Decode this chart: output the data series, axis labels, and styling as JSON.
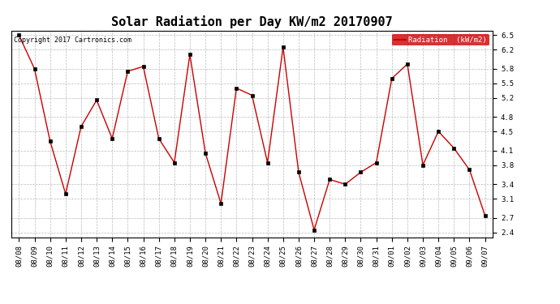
{
  "title": "Solar Radiation per Day KW/m2 20170907",
  "copyright_text": "Copyright 2017 Cartronics.com",
  "legend_label": "Radiation  (kW/m2)",
  "dates": [
    "08/08",
    "08/09",
    "08/10",
    "08/11",
    "08/12",
    "08/13",
    "08/14",
    "08/15",
    "08/16",
    "08/17",
    "08/18",
    "08/19",
    "08/20",
    "08/21",
    "08/22",
    "08/23",
    "08/24",
    "08/25",
    "08/26",
    "08/27",
    "08/28",
    "08/29",
    "08/30",
    "08/31",
    "09/01",
    "09/02",
    "09/03",
    "09/04",
    "09/05",
    "09/06",
    "09/07"
  ],
  "values": [
    6.5,
    5.8,
    4.3,
    3.2,
    4.6,
    5.15,
    4.35,
    5.75,
    5.85,
    4.35,
    3.85,
    6.1,
    4.05,
    3.0,
    5.4,
    5.25,
    3.85,
    6.25,
    3.65,
    2.45,
    3.5,
    3.4,
    3.65,
    3.85,
    5.6,
    5.9,
    3.8,
    4.5,
    4.15,
    3.7,
    2.75
  ],
  "line_color": "#cc0000",
  "marker_color": "#000000",
  "bg_color": "#ffffff",
  "grid_color": "#aaaaaa",
  "legend_bg": "#cc0000",
  "legend_text_color": "#ffffff",
  "ylim": [
    2.3,
    6.6
  ],
  "yticks": [
    2.4,
    2.7,
    3.1,
    3.4,
    3.8,
    4.1,
    4.5,
    4.8,
    5.2,
    5.5,
    5.8,
    6.2,
    6.5
  ],
  "title_fontsize": 11,
  "tick_fontsize": 6.5,
  "copyright_fontsize": 6
}
